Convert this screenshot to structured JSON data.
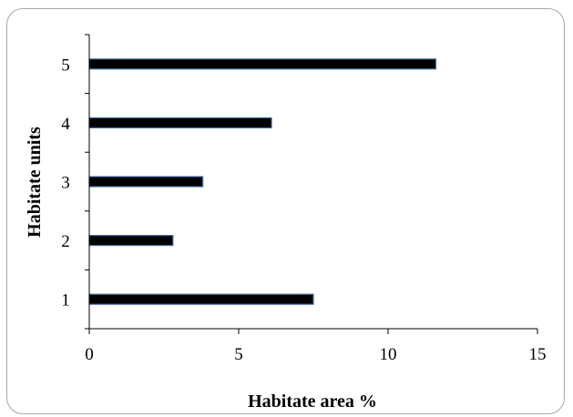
{
  "chart_data": {
    "type": "bar",
    "orientation": "horizontal",
    "categories": [
      "1",
      "2",
      "3",
      "4",
      "5"
    ],
    "values": [
      7.5,
      2.8,
      3.8,
      6.1,
      11.6
    ],
    "title": "",
    "xlabel": "Habitate area %",
    "ylabel": "Habitate units",
    "xlim": [
      0,
      15
    ],
    "xticks": [
      "0",
      "5",
      "10",
      "15"
    ],
    "grid": false,
    "legend": "none",
    "bar_color": "#000000",
    "bar_edge_color": "#4a6fa5"
  }
}
